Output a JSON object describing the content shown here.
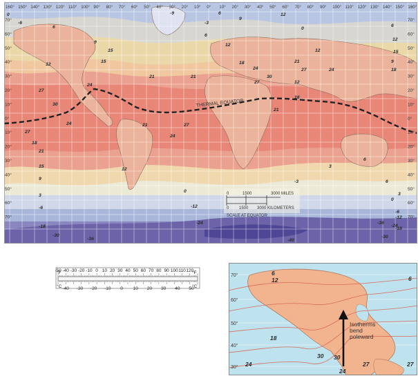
{
  "world_map": {
    "lon_labels": [
      "160°",
      "150°",
      "140°",
      "130°",
      "120°",
      "110°",
      "100°",
      "90°",
      "80°",
      "70°",
      "60°",
      "50°",
      "40°",
      "30°",
      "20°",
      "10°",
      "0°",
      "10°",
      "20°",
      "30°",
      "40°",
      "50°",
      "60°",
      "70°",
      "80°",
      "90°",
      "100°",
      "110°",
      "120°",
      "130°",
      "140°",
      "150°",
      "160°"
    ],
    "lat_labels_left": [
      "70°",
      "60°",
      "50°",
      "40°",
      "30°",
      "20°",
      "10°",
      "0°",
      "10°",
      "20°",
      "30°",
      "40°",
      "50°",
      "60°",
      "70°"
    ],
    "lat_labels_right": [
      "70°",
      "60°",
      "50°",
      "40°",
      "30°",
      "20°",
      "10°",
      "0°",
      "10°",
      "20°",
      "30°",
      "40°",
      "50°",
      "60°",
      "70°"
    ],
    "equator_label": "THERMAL EQUATOR",
    "scale": {
      "miles_ticks": [
        "0",
        "1500",
        "3000 MILES"
      ],
      "km_ticks": [
        "0",
        "1500",
        "3000 KILOMETERS"
      ],
      "caption": "SCALE AT EQUATOR"
    },
    "isotherm_labels": [
      "0",
      "-6",
      "6",
      "9",
      "15",
      "12",
      "21",
      "24",
      "27",
      "30",
      "27",
      "24",
      "18",
      "21",
      "24",
      "27",
      "21",
      "15",
      "12",
      "9",
      "3",
      "0",
      "-6",
      "-12",
      "-18",
      "-24",
      "-30",
      "-36",
      "-40",
      "-9",
      "-3",
      "6",
      "12",
      "18",
      "24",
      "27",
      "30",
      "21",
      "18",
      "12",
      "6",
      "3",
      "0",
      "-6",
      "-12",
      "-18",
      "-24",
      "-30",
      "-36",
      "6",
      "12",
      "15",
      "9",
      "18",
      "27",
      "24",
      "21",
      "12",
      "6",
      "3",
      "-3",
      "0",
      "6",
      "9",
      "12",
      "15",
      "21"
    ]
  },
  "thermometer": {
    "unit_f": "°F",
    "unit_c": "°C",
    "f_ticks": [
      "-50",
      "-40",
      "-30",
      "-20",
      "-10",
      "0",
      "10",
      "20",
      "30",
      "40",
      "50",
      "60",
      "70",
      "80",
      "90",
      "100",
      "110",
      "120"
    ],
    "c_ticks": [
      "-40",
      "-30",
      "-20",
      "-10",
      "0",
      "10",
      "20",
      "30",
      "40",
      "50"
    ]
  },
  "inset": {
    "lat_labels": [
      "70°",
      "60°",
      "50°",
      "40°",
      "30°"
    ],
    "annotation": "Isotherms bend poleward",
    "isotherm_labels": [
      "6",
      "12",
      "18",
      "24",
      "30",
      "30",
      "24",
      "27",
      "27",
      "6"
    ]
  },
  "colors": {
    "ocean_cold": "#6c63a8",
    "ocean_mid": "#eae6cf",
    "ocean_warm": "#e98677",
    "land": "#f4c7a3",
    "equator_line": "#222222"
  }
}
